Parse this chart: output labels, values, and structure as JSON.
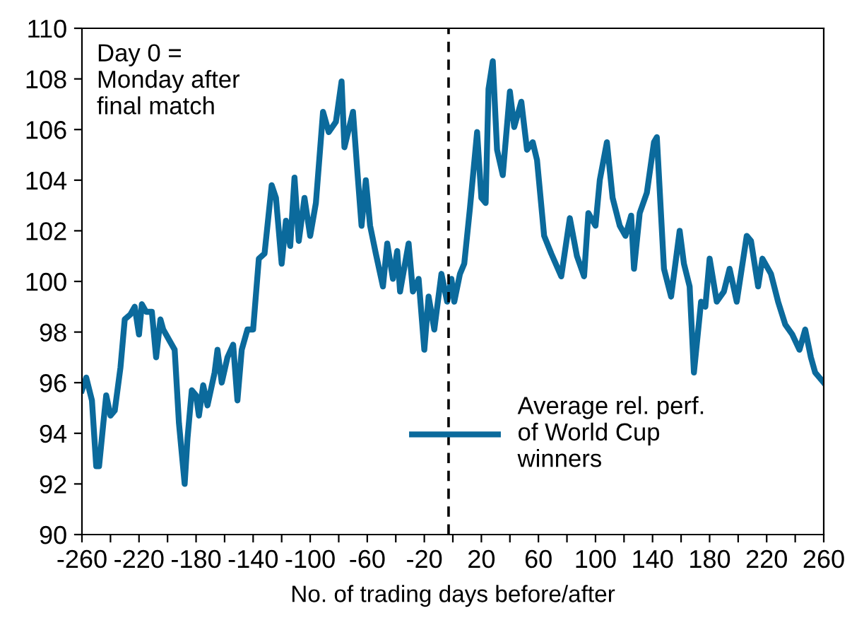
{
  "chart_data": {
    "type": "line",
    "xlabel": "No. of trading days before/after",
    "annotations": [
      "Day 0 =\nMonday after\nfinal match"
    ],
    "series": [
      {
        "name": "Average rel. perf.\nof World Cup\nwinners",
        "color": "#0b6a9c",
        "x": [
          -260,
          -257,
          -253,
          -250,
          -248,
          -245,
          -243,
          -240,
          -237,
          -233,
          -230,
          -226,
          -223,
          -220,
          -218,
          -215,
          -211,
          -208,
          -205,
          -203,
          -199,
          -195,
          -192,
          -188,
          -186,
          -183,
          -180,
          -178,
          -175,
          -172,
          -167,
          -165,
          -162,
          -158,
          -154,
          -151,
          -148,
          -144,
          -140,
          -136,
          -132,
          -127,
          -124,
          -120,
          -117,
          -114,
          -111,
          -108,
          -104,
          -100,
          -96,
          -91,
          -87,
          -82,
          -78,
          -76,
          -70,
          -67,
          -64,
          -61,
          -58,
          -54,
          -49,
          -46,
          -42,
          -39,
          -37,
          -31,
          -28,
          -24,
          -20,
          -17,
          -13,
          -8,
          -4,
          -1,
          1,
          5,
          8,
          12,
          17,
          20,
          23,
          25,
          28,
          31,
          35,
          40,
          43,
          48,
          52,
          56,
          59,
          64,
          69,
          76,
          82,
          87,
          92,
          95,
          100,
          103,
          108,
          112,
          117,
          121,
          125,
          127,
          131,
          136,
          141,
          143,
          148,
          153,
          159,
          162,
          166,
          169,
          174,
          177,
          180,
          185,
          190,
          194,
          199,
          206,
          209,
          214,
          217,
          223,
          228,
          233,
          238,
          243,
          247,
          251,
          254,
          260
        ],
        "values": [
          95.7,
          96.2,
          95.3,
          92.7,
          92.7,
          94.4,
          95.5,
          94.7,
          94.9,
          96.6,
          98.5,
          98.7,
          99.0,
          97.9,
          99.1,
          98.8,
          98.8,
          97.0,
          98.5,
          98.1,
          97.7,
          97.3,
          94.4,
          92.0,
          93.8,
          95.7,
          95.5,
          94.7,
          95.9,
          95.1,
          96.4,
          97.3,
          96.0,
          97.0,
          97.5,
          95.3,
          97.3,
          98.1,
          98.1,
          100.9,
          101.1,
          103.8,
          103.3,
          100.7,
          102.4,
          101.4,
          104.1,
          101.6,
          103.3,
          101.8,
          103.1,
          106.7,
          105.9,
          106.3,
          107.9,
          105.3,
          106.7,
          104.4,
          102.2,
          104.0,
          102.2,
          101.1,
          99.8,
          101.5,
          100.1,
          101.2,
          99.6,
          101.5,
          99.6,
          100.1,
          97.3,
          99.4,
          98.1,
          100.3,
          99.2,
          100.1,
          99.2,
          100.3,
          100.7,
          102.9,
          105.9,
          103.3,
          103.1,
          107.6,
          108.7,
          105.2,
          104.2,
          107.5,
          106.1,
          107.1,
          105.2,
          105.5,
          104.8,
          101.8,
          101.1,
          100.2,
          102.5,
          101.0,
          100.2,
          102.7,
          102.2,
          104.0,
          105.5,
          103.3,
          102.2,
          101.8,
          102.6,
          100.5,
          102.7,
          103.5,
          105.5,
          105.7,
          100.5,
          99.4,
          102.0,
          100.7,
          99.8,
          96.4,
          99.2,
          99.0,
          100.9,
          99.2,
          99.6,
          100.5,
          99.2,
          101.8,
          101.6,
          99.8,
          100.9,
          100.3,
          99.2,
          98.3,
          97.9,
          97.3,
          98.1,
          97.0,
          96.4,
          96.0
        ]
      }
    ],
    "xlim": [
      -260,
      260
    ],
    "ylim": [
      90,
      110
    ],
    "xticks": [
      -260,
      {
        "value": -240,
        "label": null
      },
      -220,
      {
        "value": -200,
        "label": null
      },
      -180,
      {
        "value": -160,
        "label": null
      },
      -140,
      {
        "value": -120,
        "label": null
      },
      -100,
      {
        "value": -80,
        "label": null
      },
      -60,
      {
        "value": -40,
        "label": null
      },
      -20,
      {
        "value": 0,
        "label": null
      },
      20,
      {
        "value": 40,
        "label": null
      },
      60,
      {
        "value": 80,
        "label": null
      },
      100,
      {
        "value": 120,
        "label": null
      },
      140,
      {
        "value": 160,
        "label": null
      },
      180,
      {
        "value": 200,
        "label": null
      },
      220,
      {
        "value": 240,
        "label": null
      },
      260
    ],
    "yticks": [
      90,
      92,
      94,
      96,
      98,
      100,
      102,
      104,
      106,
      108,
      110
    ],
    "ref_lines": [
      {
        "axis": "x",
        "value": -3,
        "color": "#000000",
        "line_style": "dashed"
      }
    ],
    "grid": false,
    "legend": "bottom right",
    "marker": "none",
    "line_style": "solid"
  }
}
